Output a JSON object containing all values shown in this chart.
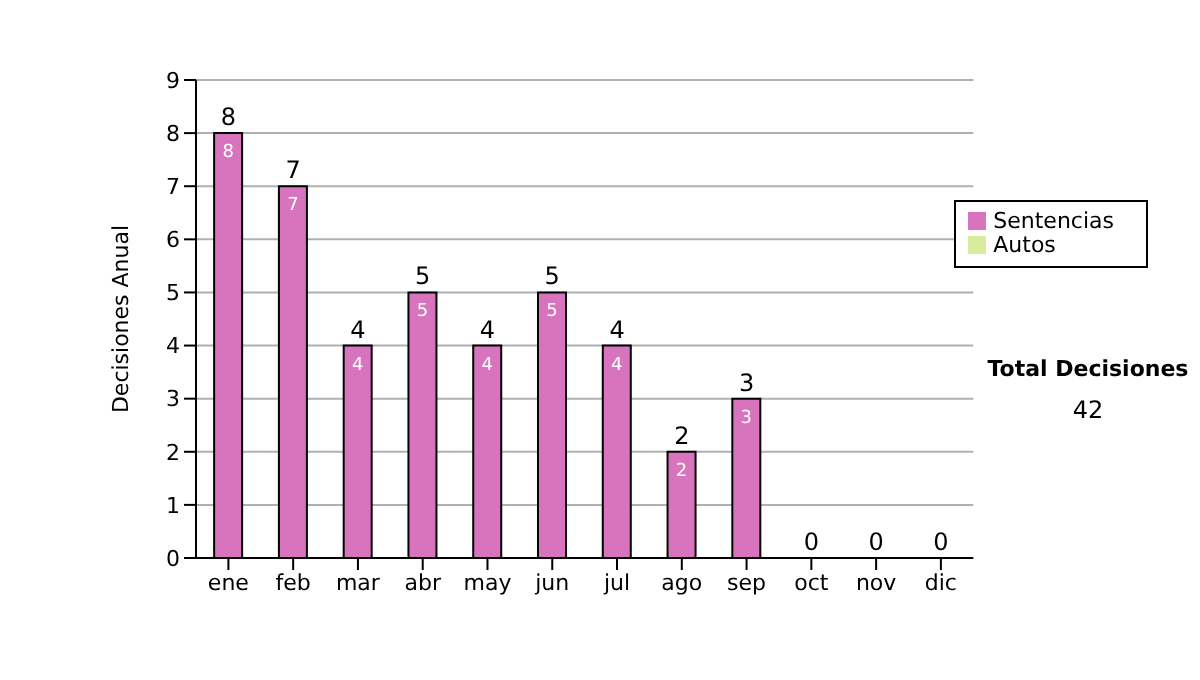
{
  "chart_data": {
    "type": "bar",
    "ylabel": "Decisiones Anual",
    "categories": [
      "ene",
      "feb",
      "mar",
      "abr",
      "may",
      "jun",
      "jul",
      "ago",
      "sep",
      "oct",
      "nov",
      "dic"
    ],
    "series": [
      {
        "name": "Sentencias",
        "color": "#d874bd",
        "values": [
          8,
          7,
          4,
          5,
          4,
          5,
          4,
          2,
          3,
          0,
          0,
          0
        ],
        "value_labels": [
          "8",
          "7",
          "4",
          "5",
          "4",
          "5",
          "4",
          "2",
          "3",
          null,
          null,
          null
        ]
      },
      {
        "name": "Autos",
        "color": "#d9ec9c",
        "values": [
          0,
          0,
          0,
          0,
          0,
          0,
          0,
          0,
          0,
          0,
          0,
          0
        ]
      }
    ],
    "stacked": true,
    "totals": [
      "8",
      "7",
      "4",
      "5",
      "4",
      "5",
      "4",
      "2",
      "3",
      "0",
      "0",
      "0"
    ],
    "ylim": [
      0,
      9
    ],
    "yticks": [
      0,
      1,
      2,
      3,
      4,
      5,
      6,
      7,
      8,
      9
    ],
    "grid": "y",
    "legend": "right",
    "annotations": [
      "Total Decisiones",
      "42"
    ]
  }
}
